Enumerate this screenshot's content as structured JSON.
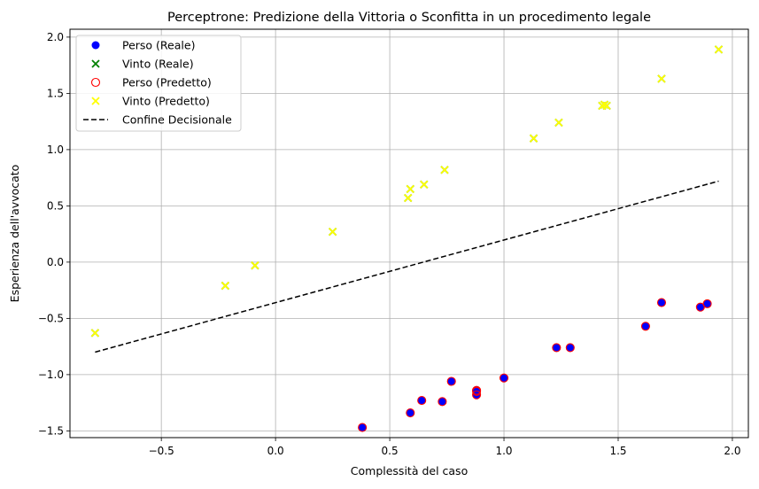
{
  "chart_data": {
    "type": "scatter",
    "title": "Perceptrone: Predizione della Vittoria o Sconfitta in un procedimento legale",
    "xlabel": "Complessità del caso",
    "ylabel": "Esperienza dell'avvocato",
    "xlim": [
      -0.9,
      2.07
    ],
    "ylim": [
      -1.56,
      2.07
    ],
    "xticks": [
      -0.5,
      0.0,
      0.5,
      1.0,
      1.5,
      2.0
    ],
    "xtick_labels": [
      "−0.5",
      "0.0",
      "0.5",
      "1.0",
      "1.5",
      "2.0"
    ],
    "yticks": [
      -1.5,
      -1.0,
      -0.5,
      0.0,
      0.5,
      1.0,
      1.5,
      2.0
    ],
    "ytick_labels": [
      "−1.5",
      "−1.0",
      "−0.5",
      "0.0",
      "0.5",
      "1.0",
      "1.5",
      "2.0"
    ],
    "grid": true,
    "legend_position": "top-left",
    "series": [
      {
        "name": "Perso (Reale)",
        "marker": "filled-circle",
        "color": "#0000ff",
        "x": [
          0.38,
          0.59,
          0.64,
          0.73,
          0.77,
          0.88,
          0.88,
          0.88,
          1.0,
          1.23,
          1.29,
          1.62,
          1.69,
          1.86,
          1.89
        ],
        "y": [
          -1.47,
          -1.34,
          -1.23,
          -1.24,
          -1.06,
          -1.14,
          -1.15,
          -1.18,
          -1.03,
          -0.76,
          -0.76,
          -0.57,
          -0.36,
          -0.4,
          -0.37
        ]
      },
      {
        "name": "Vinto (Reale)",
        "marker": "x",
        "color": "#008000",
        "x": [
          -0.79,
          -0.22,
          -0.09,
          0.25,
          0.58,
          0.59,
          0.65,
          0.74,
          1.13,
          1.24,
          1.43,
          1.45,
          1.44,
          1.69,
          1.94
        ],
        "y": [
          -0.63,
          -0.21,
          -0.03,
          0.27,
          0.57,
          0.65,
          0.69,
          0.82,
          1.1,
          1.24,
          1.39,
          1.39,
          1.4,
          1.63,
          1.89
        ]
      },
      {
        "name": "Perso (Predetto)",
        "marker": "hollow-circle",
        "color": "#ff0000",
        "x": [
          0.38,
          0.59,
          0.64,
          0.73,
          0.77,
          0.88,
          0.88,
          0.88,
          1.0,
          1.23,
          1.29,
          1.62,
          1.69,
          1.86,
          1.89
        ],
        "y": [
          -1.47,
          -1.34,
          -1.23,
          -1.24,
          -1.06,
          -1.14,
          -1.15,
          -1.18,
          -1.03,
          -0.76,
          -0.76,
          -0.57,
          -0.36,
          -0.4,
          -0.37
        ]
      },
      {
        "name": "Vinto (Predetto)",
        "marker": "x",
        "color": "#ffff00",
        "x": [
          -0.79,
          -0.22,
          -0.09,
          0.25,
          0.58,
          0.59,
          0.65,
          0.74,
          1.13,
          1.24,
          1.43,
          1.45,
          1.44,
          1.69,
          1.94
        ],
        "y": [
          -0.63,
          -0.21,
          -0.03,
          0.27,
          0.57,
          0.65,
          0.69,
          0.82,
          1.1,
          1.24,
          1.39,
          1.39,
          1.4,
          1.63,
          1.89
        ]
      },
      {
        "name": "Confine Decisionale",
        "marker": "dashed-line",
        "color": "#000000",
        "x": [
          -0.79,
          1.94
        ],
        "y": [
          -0.8,
          0.72
        ]
      }
    ]
  }
}
